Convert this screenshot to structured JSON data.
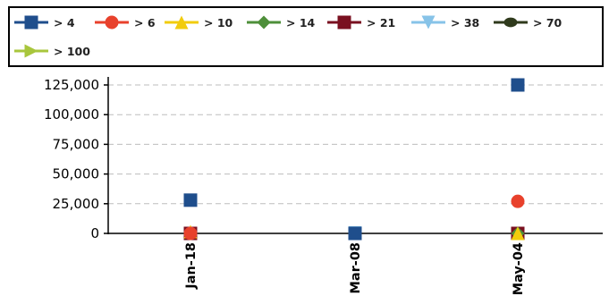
{
  "chart_data": {
    "type": "scatter",
    "categories": [
      "Jan-18",
      "Mar-08",
      "May-04"
    ],
    "ylim": [
      0,
      135000
    ],
    "yticks": [
      0,
      25000,
      50000,
      75000,
      100000,
      125000
    ],
    "ytick_labels": [
      "0",
      "25,000",
      "50,000",
      "75,000",
      "100,000",
      "125,000"
    ],
    "grid": "horizontal dashed",
    "legend_placement": "top",
    "series": [
      {
        "name": "> 4",
        "color": "#1f4e8c",
        "marker": "square",
        "values": [
          28000,
          0,
          125000
        ]
      },
      {
        "name": "> 6",
        "color": "#e8412c",
        "marker": "circle",
        "values": [
          0,
          0,
          27000
        ]
      },
      {
        "name": "> 10",
        "color": "#f2cc0c",
        "marker": "triangle-up",
        "values": [
          1500,
          0,
          0
        ]
      },
      {
        "name": "> 14",
        "color": "#4e8f3a",
        "marker": "diamond",
        "values": [
          0,
          0,
          0
        ]
      },
      {
        "name": "> 21",
        "color": "#7a1020",
        "marker": "square",
        "values": [
          0,
          0,
          0
        ]
      },
      {
        "name": "> 38",
        "color": "#87c3e8",
        "marker": "triangle-down",
        "values": [
          0,
          500,
          0
        ]
      },
      {
        "name": "> 70",
        "color": "#2f3a1c",
        "marker": "ellipse",
        "values": [
          0,
          0,
          0
        ]
      },
      {
        "name": "> 100",
        "color": "#a8c63c",
        "marker": "triangle-right",
        "values": [
          0,
          0,
          0
        ]
      }
    ]
  }
}
